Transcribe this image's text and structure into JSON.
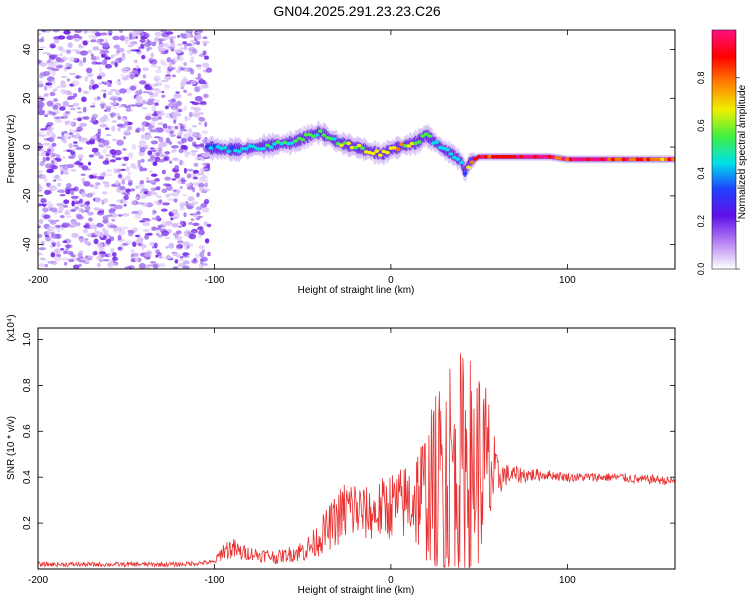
{
  "figure": {
    "title": "GN04.2025.291.23.23.C26"
  },
  "chart_data": [
    {
      "type": "heatmap",
      "title": "GN04.2025.291.23.23.C26",
      "xlabel": "Height of straight line (km)",
      "ylabel": "Frequency (Hz)",
      "xlim": [
        -200,
        161
      ],
      "ylim": [
        -50,
        48
      ],
      "x_ticks": [
        -200,
        -100,
        0,
        100
      ],
      "y_ticks": [
        -40,
        -20,
        0,
        20,
        40
      ],
      "colorbar": {
        "label": "Normalized spectral amplitude",
        "range": [
          0,
          1
        ],
        "ticks": [
          0.0,
          0.2,
          0.4,
          0.6,
          0.8
        ],
        "colormap": [
          "#ffffff",
          "#b884f4",
          "#6010e8",
          "#2040ff",
          "#00e0e8",
          "#40f040",
          "#f0f000",
          "#ff8000",
          "#ff0000",
          "#ff1080"
        ]
      },
      "noise_region_x": [
        -200,
        -103
      ],
      "ridge": {
        "x": [
          -105,
          -95,
          -85,
          -75,
          -65,
          -55,
          -45,
          -40,
          -35,
          -30,
          -25,
          -20,
          -15,
          -10,
          -5,
          0,
          5,
          10,
          15,
          20,
          25,
          30,
          35,
          40,
          42,
          45,
          50,
          60,
          70,
          80,
          90,
          100,
          110,
          120,
          130,
          140,
          150,
          161
        ],
        "y": [
          0,
          -1,
          -1,
          0,
          1,
          2,
          5,
          6,
          4,
          2,
          1,
          0,
          -1,
          -2,
          -3,
          -1,
          0,
          1,
          2,
          5,
          2,
          -1,
          -3,
          -6,
          -10,
          -6,
          -4,
          -4,
          -4,
          -4,
          -4,
          -5,
          -5,
          -5,
          -5,
          -5,
          -5,
          -5
        ],
        "amplitude": [
          0.3,
          0.35,
          0.38,
          0.4,
          0.42,
          0.45,
          0.48,
          0.5,
          0.45,
          0.48,
          0.55,
          0.6,
          0.55,
          0.65,
          0.6,
          0.62,
          0.68,
          0.55,
          0.5,
          0.45,
          0.42,
          0.4,
          0.38,
          0.35,
          0.33,
          0.7,
          0.85,
          0.8,
          0.85,
          0.9,
          0.8,
          0.85,
          0.95,
          0.9,
          0.85,
          0.8,
          0.75,
          0.7
        ]
      }
    },
    {
      "type": "line",
      "xlabel": "Height of straight line (km)",
      "ylabel": "SNR (10 * v/v)",
      "y_multiplier": "(x10⁴)",
      "xlim": [
        -200,
        161
      ],
      "ylim": [
        0.0,
        1.05
      ],
      "x_ticks": [
        -200,
        -100,
        0,
        100
      ],
      "y_ticks": [
        0.2,
        0.4,
        0.6,
        0.8,
        1.0
      ],
      "color": "#e83030",
      "series": [
        {
          "x": [
            -200,
            -180,
            -160,
            -140,
            -120,
            -100,
            -95,
            -90,
            -85,
            -80,
            -75,
            -70,
            -65,
            -60,
            -55,
            -50,
            -45,
            -40,
            -35,
            -30,
            -25,
            -20,
            -15,
            -10,
            -5,
            0,
            5,
            10,
            15,
            20,
            25,
            30,
            35,
            40,
            45,
            50,
            55,
            60,
            65,
            70,
            80,
            90,
            100,
            110,
            120,
            130,
            140,
            150,
            161
          ],
          "y": [
            0.02,
            0.02,
            0.02,
            0.02,
            0.02,
            0.03,
            0.08,
            0.09,
            0.07,
            0.07,
            0.06,
            0.06,
            0.05,
            0.06,
            0.07,
            0.08,
            0.1,
            0.14,
            0.18,
            0.22,
            0.26,
            0.26,
            0.24,
            0.24,
            0.26,
            0.28,
            0.28,
            0.3,
            0.32,
            0.33,
            0.36,
            0.4,
            0.45,
            0.45,
            0.45,
            0.45,
            0.42,
            0.4,
            0.41,
            0.41,
            0.41,
            0.41,
            0.4,
            0.4,
            0.4,
            0.4,
            0.39,
            0.39,
            0.38
          ],
          "noise_amplitude": [
            0.01,
            0.01,
            0.01,
            0.01,
            0.01,
            0.01,
            0.04,
            0.05,
            0.04,
            0.03,
            0.03,
            0.03,
            0.03,
            0.03,
            0.04,
            0.05,
            0.06,
            0.08,
            0.1,
            0.12,
            0.15,
            0.14,
            0.12,
            0.12,
            0.14,
            0.15,
            0.16,
            0.18,
            0.25,
            0.3,
            0.4,
            0.5,
            0.55,
            0.5,
            0.5,
            0.45,
            0.4,
            0.1,
            0.05,
            0.04,
            0.03,
            0.02,
            0.02,
            0.02,
            0.02,
            0.02,
            0.02,
            0.02,
            0.02
          ]
        }
      ]
    }
  ]
}
